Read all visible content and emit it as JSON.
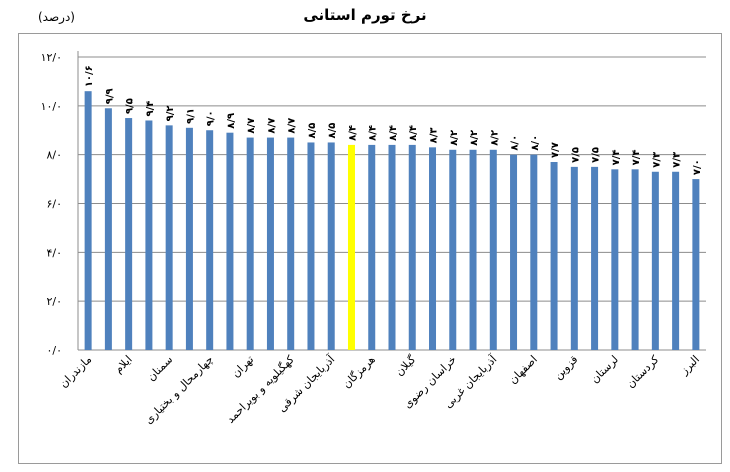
{
  "chart_data": {
    "type": "bar",
    "title": "نرخ تورم استانی",
    "unit": "(درصد)",
    "ylim": [
      0,
      12
    ],
    "yticks": [
      "۰/۰",
      "۲/۰",
      "۴/۰",
      "۶/۰",
      "۸/۰",
      "۱۰/۰",
      "۱۲/۰"
    ],
    "grid": true,
    "values": [
      10.6,
      9.9,
      9.5,
      9.4,
      9.2,
      9.1,
      9.0,
      8.9,
      8.7,
      8.7,
      8.7,
      8.5,
      8.5,
      8.4,
      8.4,
      8.4,
      8.4,
      8.3,
      8.2,
      8.2,
      8.2,
      8.0,
      8.0,
      7.7,
      7.5,
      7.5,
      7.4,
      7.4,
      7.3,
      7.3,
      7.0
    ],
    "value_labels": [
      "۱۰/۶",
      "۹/۹",
      "۹/۵",
      "۹/۴",
      "۹/۲",
      "۹/۱",
      "۹/۰",
      "۸/۹",
      "۸/۷",
      "۸/۷",
      "۸/۷",
      "۸/۵",
      "۸/۵",
      "۸/۴",
      "۸/۴",
      "۸/۴",
      "۸/۴",
      "۸/۳",
      "۸/۲",
      "۸/۲",
      "۸/۲",
      "۸/۰",
      "۸/۰",
      "۷/۷",
      "۷/۵",
      "۷/۵",
      "۷/۴",
      "۷/۴",
      "۷/۳",
      "۷/۳",
      "۷/۰"
    ],
    "category_labels": [
      {
        "index": 0,
        "text": "مازندران"
      },
      {
        "index": 2,
        "text": "ایلام"
      },
      {
        "index": 4,
        "text": "سمنان"
      },
      {
        "index": 6,
        "text": "چهارمحال و بختیاری"
      },
      {
        "index": 8,
        "text": "تهران"
      },
      {
        "index": 10,
        "text": "کهگیلویه و بویراحمد"
      },
      {
        "index": 12,
        "text": "آذربایجان شرقی"
      },
      {
        "index": 14,
        "text": "هرمزگان"
      },
      {
        "index": 16,
        "text": "گیلان"
      },
      {
        "index": 18,
        "text": "خراسان رضوی"
      },
      {
        "index": 20,
        "text": "آذربایجان غربی"
      },
      {
        "index": 22,
        "text": "اصفهان"
      },
      {
        "index": 24,
        "text": "قزوین"
      },
      {
        "index": 26,
        "text": "لرستان"
      },
      {
        "index": 28,
        "text": "کردستان"
      },
      {
        "index": 30,
        "text": "البرز"
      }
    ],
    "colors": {
      "bar": "#4F81BD",
      "highlight": "#FFFF00",
      "grid": "#8c8c8c"
    },
    "highlight_index": 13
  }
}
